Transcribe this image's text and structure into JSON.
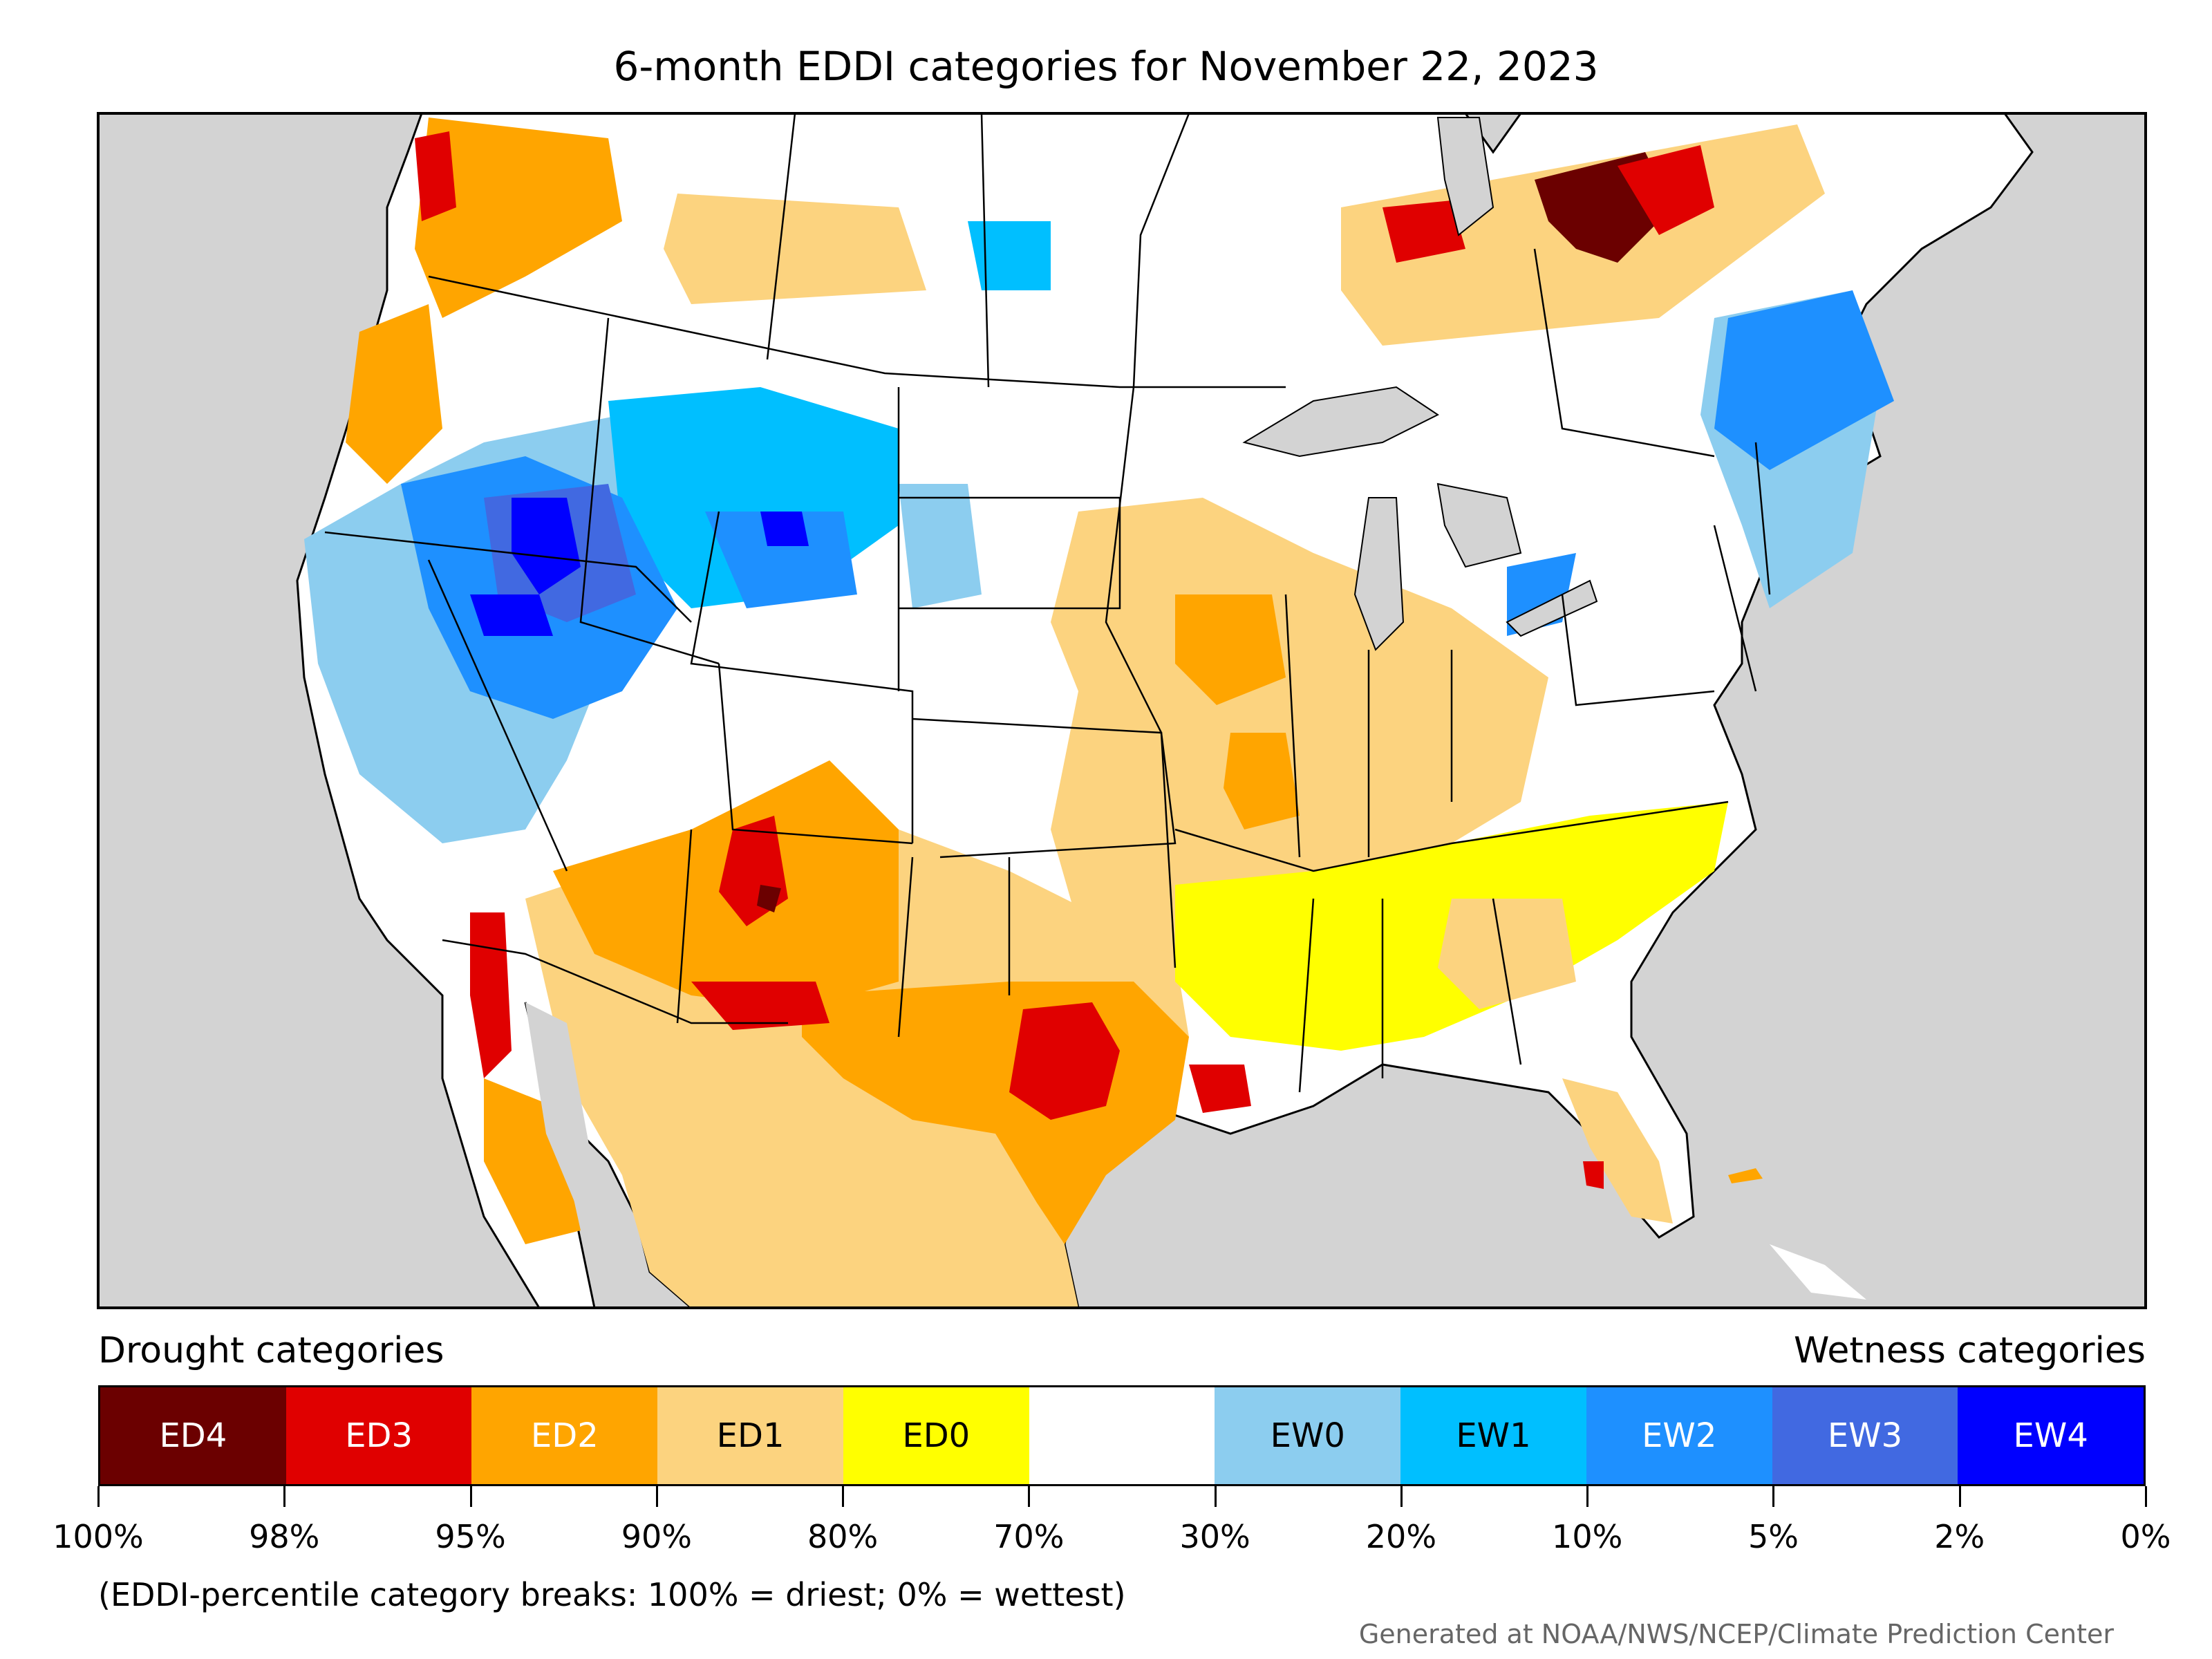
{
  "title": "6-month EDDI categories for November 22, 2023",
  "legend": {
    "drought_heading": "Drought categories",
    "wetness_heading": "Wetness categories",
    "categories": [
      {
        "label": "ED4",
        "color": "#6b0000",
        "text_color": "#ffffff"
      },
      {
        "label": "ED3",
        "color": "#e00000",
        "text_color": "#ffffff"
      },
      {
        "label": "ED2",
        "color": "#ffa500",
        "text_color": "#ffffff"
      },
      {
        "label": "ED1",
        "color": "#fcd37f",
        "text_color": "#000000"
      },
      {
        "label": "ED0",
        "color": "#ffff00",
        "text_color": "#000000"
      },
      {
        "label": "",
        "color": "#ffffff",
        "text_color": "#000000"
      },
      {
        "label": "EW0",
        "color": "#8ccdef",
        "text_color": "#000000"
      },
      {
        "label": "EW1",
        "color": "#00bfff",
        "text_color": "#000000"
      },
      {
        "label": "EW2",
        "color": "#1e90ff",
        "text_color": "#ffffff"
      },
      {
        "label": "EW3",
        "color": "#4169e1",
        "text_color": "#ffffff"
      },
      {
        "label": "EW4",
        "color": "#0000ff",
        "text_color": "#ffffff"
      }
    ],
    "breaks": [
      "100%",
      "98%",
      "95%",
      "90%",
      "80%",
      "70%",
      "30%",
      "20%",
      "10%",
      "5%",
      "2%",
      "0%"
    ]
  },
  "footnote": "(EDDI-percentile category breaks: 100% = driest; 0% = wettest)",
  "credit": "Generated at NOAA/NWS/NCEP/Climate Prediction Center",
  "colors": {
    "ocean": "#d3d3d3",
    "land_no_category": "#ffffff",
    "border": "#000000"
  }
}
